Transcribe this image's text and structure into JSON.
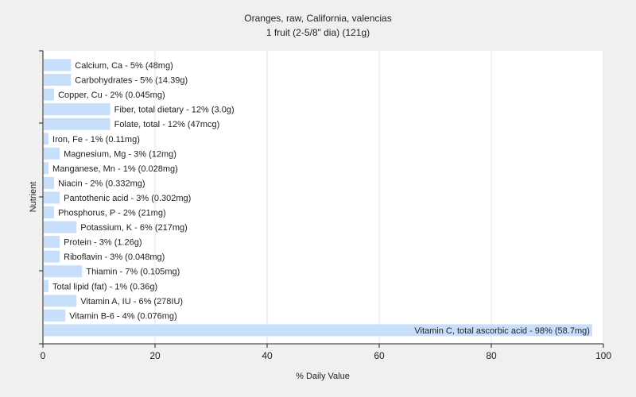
{
  "chart_data": {
    "type": "bar",
    "orientation": "horizontal",
    "title": "Oranges, raw, California, valencias",
    "subtitle": "1 fruit (2-5/8\" dia) (121g)",
    "xlabel": "% Daily Value",
    "ylabel": "Nutrient",
    "xlim": [
      0,
      100
    ],
    "xticks": [
      0,
      20,
      40,
      60,
      80,
      100
    ],
    "grid": true,
    "bar_color": "#c8dffc",
    "categories": [
      "Calcium, Ca - 5% (48mg)",
      "Carbohydrates - 5% (14.39g)",
      "Copper, Cu - 2% (0.045mg)",
      "Fiber, total dietary - 12% (3.0g)",
      "Folate, total - 12% (47mcg)",
      "Iron, Fe - 1% (0.11mg)",
      "Magnesium, Mg - 3% (12mg)",
      "Manganese, Mn - 1% (0.028mg)",
      "Niacin - 2% (0.332mg)",
      "Pantothenic acid - 3% (0.302mg)",
      "Phosphorus, P - 2% (21mg)",
      "Potassium, K - 6% (217mg)",
      "Protein - 3% (1.26g)",
      "Riboflavin - 3% (0.048mg)",
      "Thiamin - 7% (0.105mg)",
      "Total lipid (fat) - 1% (0.36g)",
      "Vitamin A, IU - 6% (278IU)",
      "Vitamin B-6 - 4% (0.076mg)",
      "Vitamin C, total ascorbic acid - 98% (58.7mg)"
    ],
    "values": [
      5,
      5,
      2,
      12,
      12,
      1,
      3,
      1,
      2,
      3,
      2,
      6,
      3,
      3,
      7,
      1,
      6,
      4,
      98
    ]
  }
}
